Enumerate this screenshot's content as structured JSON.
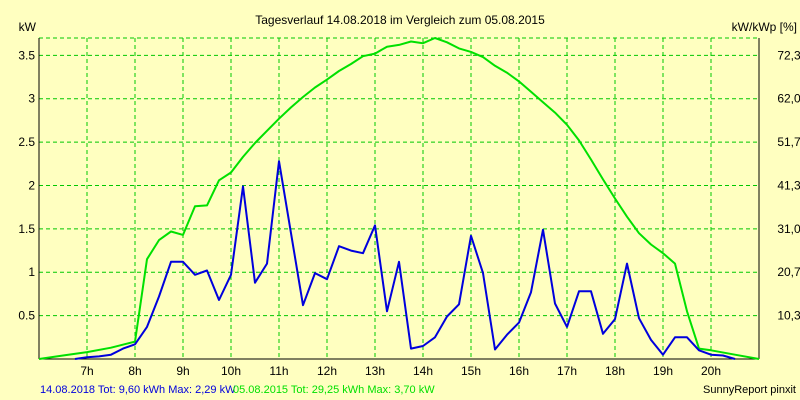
{
  "chart_data": {
    "type": "line",
    "title": "Tagesverlauf 14.08.2018 im Vergleich zum 05.08.2015",
    "ylabel_left": "kW",
    "ylabel_right": "kW/kWp [%]",
    "ylim": [
      0,
      3.7
    ],
    "xlim": [
      6.0,
      21.0
    ],
    "grid": true,
    "left_ticks": [
      {
        "value": 0.5,
        "label": "0.5"
      },
      {
        "value": 1.0,
        "label": "1"
      },
      {
        "value": 1.5,
        "label": "1.5"
      },
      {
        "value": 2.0,
        "label": "2"
      },
      {
        "value": 2.5,
        "label": "2.5"
      },
      {
        "value": 3.0,
        "label": "3"
      },
      {
        "value": 3.5,
        "label": "3.5"
      }
    ],
    "right_ticks": [
      {
        "value": 0.5,
        "label": "10,3"
      },
      {
        "value": 1.0,
        "label": "20,7"
      },
      {
        "value": 1.5,
        "label": "31,0"
      },
      {
        "value": 2.0,
        "label": "41,3"
      },
      {
        "value": 2.5,
        "label": "51,7"
      },
      {
        "value": 3.0,
        "label": "62,0"
      },
      {
        "value": 3.5,
        "label": "72,3"
      }
    ],
    "x_ticks": [
      {
        "value": 7,
        "label": "7h"
      },
      {
        "value": 8,
        "label": "8h"
      },
      {
        "value": 9,
        "label": "9h"
      },
      {
        "value": 10,
        "label": "10h"
      },
      {
        "value": 11,
        "label": "11h"
      },
      {
        "value": 12,
        "label": "12h"
      },
      {
        "value": 13,
        "label": "13h"
      },
      {
        "value": 14,
        "label": "14h"
      },
      {
        "value": 15,
        "label": "15h"
      },
      {
        "value": 16,
        "label": "16h"
      },
      {
        "value": 17,
        "label": "17h"
      },
      {
        "value": 18,
        "label": "18h"
      },
      {
        "value": 19,
        "label": "19h"
      },
      {
        "value": 20,
        "label": "20h"
      }
    ],
    "series": [
      {
        "name": "14.08.2018",
        "color": "#0000dd",
        "points": [
          [
            6.75,
            0.0
          ],
          [
            7.0,
            0.02
          ],
          [
            7.25,
            0.03
          ],
          [
            7.5,
            0.05
          ],
          [
            7.75,
            0.12
          ],
          [
            8.0,
            0.17
          ],
          [
            8.25,
            0.37
          ],
          [
            8.5,
            0.72
          ],
          [
            8.75,
            1.12
          ],
          [
            9.0,
            1.12
          ],
          [
            9.25,
            0.97
          ],
          [
            9.5,
            1.02
          ],
          [
            9.75,
            0.68
          ],
          [
            10.0,
            0.97
          ],
          [
            10.25,
            1.99
          ],
          [
            10.5,
            0.88
          ],
          [
            10.75,
            1.1
          ],
          [
            11.0,
            2.28
          ],
          [
            11.25,
            1.45
          ],
          [
            11.5,
            0.62
          ],
          [
            11.75,
            0.99
          ],
          [
            12.0,
            0.92
          ],
          [
            12.25,
            1.3
          ],
          [
            12.5,
            1.25
          ],
          [
            12.75,
            1.22
          ],
          [
            13.0,
            1.54
          ],
          [
            13.25,
            0.55
          ],
          [
            13.5,
            1.12
          ],
          [
            13.75,
            0.12
          ],
          [
            14.0,
            0.15
          ],
          [
            14.25,
            0.25
          ],
          [
            14.5,
            0.49
          ],
          [
            14.75,
            0.63
          ],
          [
            15.0,
            1.42
          ],
          [
            15.25,
            0.99
          ],
          [
            15.5,
            0.11
          ],
          [
            15.75,
            0.28
          ],
          [
            16.0,
            0.42
          ],
          [
            16.25,
            0.77
          ],
          [
            16.5,
            1.49
          ],
          [
            16.75,
            0.64
          ],
          [
            17.0,
            0.37
          ],
          [
            17.25,
            0.78
          ],
          [
            17.5,
            0.78
          ],
          [
            17.75,
            0.29
          ],
          [
            18.0,
            0.46
          ],
          [
            18.25,
            1.1
          ],
          [
            18.5,
            0.47
          ],
          [
            18.75,
            0.22
          ],
          [
            19.0,
            0.05
          ],
          [
            19.25,
            0.25
          ],
          [
            19.5,
            0.25
          ],
          [
            19.75,
            0.1
          ],
          [
            20.0,
            0.05
          ],
          [
            20.25,
            0.04
          ],
          [
            20.5,
            0.0
          ]
        ]
      },
      {
        "name": "05.08.2015",
        "color": "#00e000",
        "points": [
          [
            6.0,
            0.0
          ],
          [
            6.5,
            0.04
          ],
          [
            7.0,
            0.08
          ],
          [
            7.5,
            0.13
          ],
          [
            8.0,
            0.2
          ],
          [
            8.25,
            1.15
          ],
          [
            8.5,
            1.37
          ],
          [
            8.75,
            1.47
          ],
          [
            9.0,
            1.43
          ],
          [
            9.25,
            1.76
          ],
          [
            9.5,
            1.77
          ],
          [
            9.75,
            2.06
          ],
          [
            10.0,
            2.15
          ],
          [
            10.25,
            2.33
          ],
          [
            10.5,
            2.49
          ],
          [
            10.75,
            2.63
          ],
          [
            11.0,
            2.77
          ],
          [
            11.25,
            2.9
          ],
          [
            11.5,
            3.02
          ],
          [
            11.75,
            3.13
          ],
          [
            12.0,
            3.22
          ],
          [
            12.25,
            3.32
          ],
          [
            12.5,
            3.4
          ],
          [
            12.75,
            3.49
          ],
          [
            13.0,
            3.52
          ],
          [
            13.25,
            3.6
          ],
          [
            13.5,
            3.62
          ],
          [
            13.75,
            3.66
          ],
          [
            14.0,
            3.64
          ],
          [
            14.25,
            3.7
          ],
          [
            14.5,
            3.65
          ],
          [
            14.75,
            3.58
          ],
          [
            15.0,
            3.54
          ],
          [
            15.25,
            3.48
          ],
          [
            15.5,
            3.38
          ],
          [
            15.75,
            3.3
          ],
          [
            16.0,
            3.2
          ],
          [
            16.25,
            3.08
          ],
          [
            16.5,
            2.96
          ],
          [
            16.75,
            2.84
          ],
          [
            17.0,
            2.7
          ],
          [
            17.25,
            2.52
          ],
          [
            17.5,
            2.3
          ],
          [
            17.75,
            2.07
          ],
          [
            18.0,
            1.85
          ],
          [
            18.25,
            1.64
          ],
          [
            18.5,
            1.45
          ],
          [
            18.75,
            1.32
          ],
          [
            19.0,
            1.22
          ],
          [
            19.25,
            1.1
          ],
          [
            19.5,
            0.55
          ],
          [
            19.75,
            0.12
          ],
          [
            20.0,
            0.1
          ],
          [
            20.5,
            0.05
          ],
          [
            21.0,
            0.0
          ]
        ]
      }
    ]
  },
  "legend": {
    "series_a": "14.08.2018 Tot: 9,60 kWh Max: 2,29 kW",
    "series_b": "05.08.2015 Tot: 29,25 kWh Max: 3,70 kW",
    "credit": "SunnyReport pinxit"
  },
  "colors": {
    "background": "#ffffc0",
    "grid": "#00c800",
    "series_a": "#0000dd",
    "series_b": "#00e000"
  }
}
